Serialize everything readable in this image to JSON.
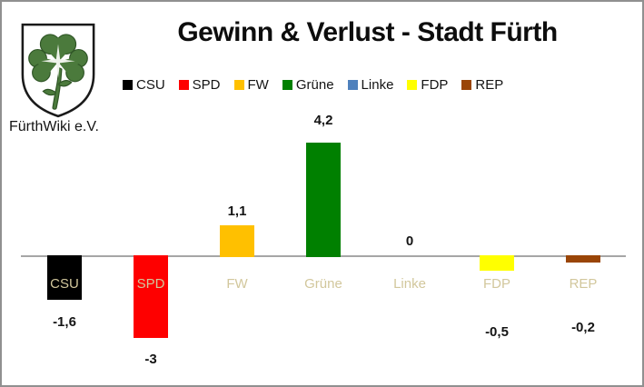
{
  "window": {
    "background": "#ffffff",
    "border_color": "#909090"
  },
  "header": {
    "title": "Gewinn & Verlust - Stadt Fürth",
    "credit": "FürthWiki e.V.",
    "logo": "fuerth-coat-of-arms"
  },
  "legend": {
    "items": [
      {
        "label": "CSU",
        "color": "#000000"
      },
      {
        "label": "SPD",
        "color": "#fe0000"
      },
      {
        "label": "FW",
        "color": "#ffc000"
      },
      {
        "label": "Grüne",
        "color": "#008000"
      },
      {
        "label": "Linke",
        "color": "#4f81bd"
      },
      {
        "label": "FDP",
        "color": "#ffff00"
      },
      {
        "label": "REP",
        "color": "#9a4507"
      }
    ]
  },
  "chart_data": {
    "type": "bar",
    "title": "Gewinn & Verlust - Stadt Fürth",
    "categories": [
      "CSU",
      "SPD",
      "FW",
      "Grüne",
      "Linke",
      "FDP",
      "REP"
    ],
    "values": [
      -1.6,
      -3,
      1.1,
      4.2,
      0,
      -0.5,
      -0.2
    ],
    "value_labels": [
      "-1,6",
      "-3",
      "1,1",
      "4,2",
      "0",
      "-0,5",
      "-0,2"
    ],
    "series_colors": [
      "#000000",
      "#fe0000",
      "#ffc000",
      "#008000",
      "#4f81bd",
      "#ffff00",
      "#9a4507"
    ],
    "category_label_color": "#d2c79c",
    "axis_color": "#a6a6a6",
    "xlabel": "",
    "ylabel": "",
    "ylim": [
      -3.5,
      4.5
    ],
    "grid": false,
    "legend_position": "top"
  }
}
